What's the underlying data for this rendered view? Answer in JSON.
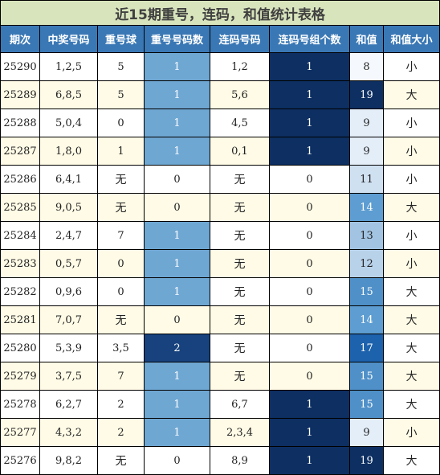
{
  "title": "近15期重号，连码，和值统计表格",
  "headers": [
    "期次",
    "中奖号码",
    "重号球",
    "重号号码数",
    "连码号码",
    "连码号组个数",
    "和值",
    "和值大小"
  ],
  "rows": [
    {
      "issue": "25290",
      "numbers": "1,2,5",
      "repeat_ball": "5",
      "repeat_count": "1",
      "consecutive": "1,2",
      "consecutive_groups": "1",
      "sum": "8",
      "size": "小"
    },
    {
      "issue": "25289",
      "numbers": "6,8,5",
      "repeat_ball": "5",
      "repeat_count": "1",
      "consecutive": "5,6",
      "consecutive_groups": "1",
      "sum": "19",
      "size": "大"
    },
    {
      "issue": "25288",
      "numbers": "5,0,4",
      "repeat_ball": "0",
      "repeat_count": "1",
      "consecutive": "4,5",
      "consecutive_groups": "1",
      "sum": "9",
      "size": "小"
    },
    {
      "issue": "25287",
      "numbers": "1,8,0",
      "repeat_ball": "1",
      "repeat_count": "1",
      "consecutive": "0,1",
      "consecutive_groups": "1",
      "sum": "9",
      "size": "小"
    },
    {
      "issue": "25286",
      "numbers": "6,4,1",
      "repeat_ball": "无",
      "repeat_count": "0",
      "consecutive": "无",
      "consecutive_groups": "0",
      "sum": "11",
      "size": "小"
    },
    {
      "issue": "25285",
      "numbers": "9,0,5",
      "repeat_ball": "无",
      "repeat_count": "0",
      "consecutive": "无",
      "consecutive_groups": "0",
      "sum": "14",
      "size": "大"
    },
    {
      "issue": "25284",
      "numbers": "2,4,7",
      "repeat_ball": "7",
      "repeat_count": "1",
      "consecutive": "无",
      "consecutive_groups": "0",
      "sum": "13",
      "size": "小"
    },
    {
      "issue": "25283",
      "numbers": "0,5,7",
      "repeat_ball": "0",
      "repeat_count": "1",
      "consecutive": "无",
      "consecutive_groups": "0",
      "sum": "12",
      "size": "小"
    },
    {
      "issue": "25282",
      "numbers": "0,9,6",
      "repeat_ball": "0",
      "repeat_count": "1",
      "consecutive": "无",
      "consecutive_groups": "0",
      "sum": "15",
      "size": "大"
    },
    {
      "issue": "25281",
      "numbers": "7,0,7",
      "repeat_ball": "无",
      "repeat_count": "0",
      "consecutive": "无",
      "consecutive_groups": "0",
      "sum": "14",
      "size": "大"
    },
    {
      "issue": "25280",
      "numbers": "5,3,9",
      "repeat_ball": "3,5",
      "repeat_count": "2",
      "consecutive": "无",
      "consecutive_groups": "0",
      "sum": "17",
      "size": "大"
    },
    {
      "issue": "25279",
      "numbers": "3,7,5",
      "repeat_ball": "7",
      "repeat_count": "1",
      "consecutive": "无",
      "consecutive_groups": "0",
      "sum": "15",
      "size": "大"
    },
    {
      "issue": "25278",
      "numbers": "6,2,7",
      "repeat_ball": "2",
      "repeat_count": "1",
      "consecutive": "6,7",
      "consecutive_groups": "1",
      "sum": "15",
      "size": "大"
    },
    {
      "issue": "25277",
      "numbers": "4,3,2",
      "repeat_ball": "2",
      "repeat_count": "1",
      "consecutive": "2,3,4",
      "consecutive_groups": "1",
      "sum": "9",
      "size": "小"
    },
    {
      "issue": "25276",
      "numbers": "9,8,2",
      "repeat_ball": "无",
      "repeat_count": "0",
      "consecutive": "8,9",
      "consecutive_groups": "1",
      "sum": "19",
      "size": "大"
    }
  ],
  "colors": {
    "title_bg": "#d8e4bc",
    "header_bg": "#3a78b5",
    "alt_row_bg": "#fffbe6",
    "repeat_bg": "#6fa7d3",
    "repeat_high_bg": "#17427d",
    "group_bg": "#0d2f62",
    "sum_scale": {
      "8": "#f5f9fd",
      "9": "#e4eef8",
      "11": "#cfe0f1",
      "12": "#b8d2ea",
      "13": "#a2c4e2",
      "14": "#5d9dd1",
      "15": "#4f90c8",
      "17": "#1d62ad",
      "19": "#0d2f62"
    }
  }
}
